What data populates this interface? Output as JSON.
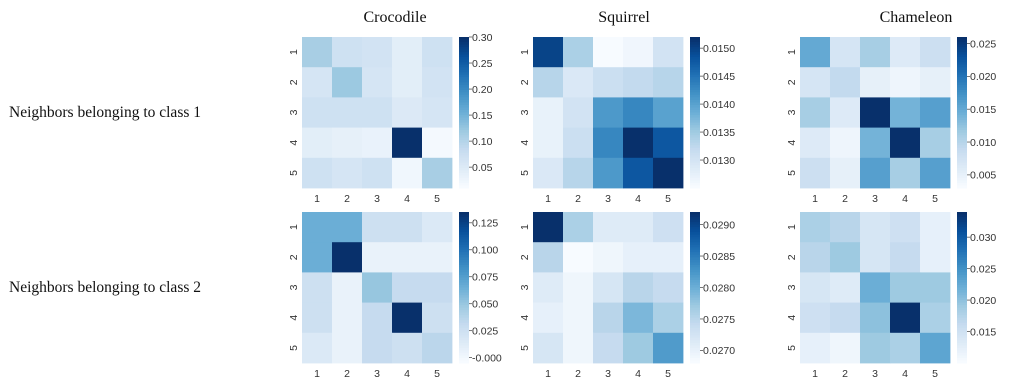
{
  "row_labels": [
    "Neighbors belonging to class 1",
    "Neighbors belonging to class 2"
  ],
  "col_titles": [
    "Crocodile",
    "Squirrel",
    "Chameleon"
  ],
  "chart_data": [
    {
      "type": "heatmap",
      "title": "Crocodile",
      "row_group": "Neighbors belonging to class 1",
      "xticks": [
        "1",
        "2",
        "3",
        "4",
        "5"
      ],
      "yticks": [
        "1",
        "2",
        "3",
        "4",
        "5"
      ],
      "vmin": 0.01,
      "vmax": 0.3,
      "colorbar_ticks": [
        0.3,
        0.25,
        0.2,
        0.15,
        0.1,
        0.05
      ],
      "colorbar_labels": [
        "0.30",
        "0.25",
        "0.20",
        "0.15",
        "0.10",
        "0.05"
      ],
      "values": [
        [
          0.11,
          0.07,
          0.065,
          0.04,
          0.07
        ],
        [
          0.06,
          0.12,
          0.06,
          0.04,
          0.065
        ],
        [
          0.07,
          0.07,
          0.07,
          0.05,
          0.06
        ],
        [
          0.04,
          0.035,
          0.03,
          0.3,
          0.015
        ],
        [
          0.07,
          0.06,
          0.07,
          0.02,
          0.11
        ]
      ]
    },
    {
      "type": "heatmap",
      "title": "Squirrel",
      "row_group": "Neighbors belonging to class 1",
      "xticks": [
        "1",
        "2",
        "3",
        "4",
        "5"
      ],
      "yticks": [
        "1",
        "2",
        "3",
        "4",
        "5"
      ],
      "vmin": 0.0125,
      "vmax": 0.0152,
      "colorbar_ticks": [
        0.015,
        0.0145,
        0.014,
        0.0135,
        0.013
      ],
      "colorbar_labels": [
        "0.0150",
        "0.0145",
        "0.0140",
        "0.0135",
        "0.0130"
      ],
      "values": [
        [
          0.015,
          0.0134,
          0.0125,
          0.0126,
          0.013
        ],
        [
          0.0133,
          0.0129,
          0.0131,
          0.0132,
          0.0133
        ],
        [
          0.0127,
          0.013,
          0.0141,
          0.0143,
          0.014
        ],
        [
          0.0127,
          0.0131,
          0.0143,
          0.0152,
          0.0148
        ],
        [
          0.0129,
          0.0133,
          0.0141,
          0.0148,
          0.0152
        ]
      ]
    },
    {
      "type": "heatmap",
      "title": "Chameleon",
      "row_group": "Neighbors belonging to class 1",
      "xticks": [
        "1",
        "2",
        "3",
        "4",
        "5"
      ],
      "yticks": [
        "1",
        "2",
        "3",
        "4",
        "5"
      ],
      "vmin": 0.003,
      "vmax": 0.026,
      "colorbar_ticks": [
        0.025,
        0.02,
        0.015,
        0.01,
        0.005
      ],
      "colorbar_labels": [
        "0.025",
        "0.020",
        "0.015",
        "0.010",
        "0.005"
      ],
      "values": [
        [
          0.015,
          0.007,
          0.011,
          0.006,
          0.008
        ],
        [
          0.007,
          0.009,
          0.005,
          0.004,
          0.005
        ],
        [
          0.011,
          0.006,
          0.026,
          0.014,
          0.016
        ],
        [
          0.006,
          0.004,
          0.014,
          0.026,
          0.011
        ],
        [
          0.008,
          0.005,
          0.016,
          0.011,
          0.016
        ]
      ]
    },
    {
      "type": "heatmap",
      "title": "Crocodile",
      "row_group": "Neighbors belonging to class 2",
      "xticks": [
        "1",
        "2",
        "3",
        "4",
        "5"
      ],
      "yticks": [
        "1",
        "2",
        "3",
        "4",
        "5"
      ],
      "vmin": -0.005,
      "vmax": 0.135,
      "colorbar_ticks": [
        0.125,
        0.1,
        0.075,
        0.05,
        0.025,
        0.0
      ],
      "colorbar_labels": [
        "0.125",
        "0.100",
        "0.075",
        "0.050",
        "0.025",
        "-0.000"
      ],
      "values": [
        [
          0.065,
          0.065,
          0.025,
          0.025,
          0.015
        ],
        [
          0.065,
          0.135,
          0.005,
          0.005,
          0.005
        ],
        [
          0.025,
          0.005,
          0.05,
          0.03,
          0.03
        ],
        [
          0.025,
          0.005,
          0.03,
          0.135,
          0.025
        ],
        [
          0.015,
          0.005,
          0.03,
          0.025,
          0.035
        ]
      ]
    },
    {
      "type": "heatmap",
      "title": "Squirrel",
      "row_group": "Neighbors belonging to class 2",
      "xticks": [
        "1",
        "2",
        "3",
        "4",
        "5"
      ],
      "yticks": [
        "1",
        "2",
        "3",
        "4",
        "5"
      ],
      "vmin": 0.0268,
      "vmax": 0.0292,
      "colorbar_ticks": [
        0.029,
        0.0285,
        0.028,
        0.0275,
        0.027
      ],
      "colorbar_labels": [
        "0.0290",
        "0.0285",
        "0.0280",
        "0.0275",
        "0.0270"
      ],
      "values": [
        [
          0.0292,
          0.0276,
          0.0271,
          0.0271,
          0.0273
        ],
        [
          0.0275,
          0.0268,
          0.0269,
          0.027,
          0.027
        ],
        [
          0.0271,
          0.0269,
          0.0272,
          0.0275,
          0.0274
        ],
        [
          0.027,
          0.0269,
          0.0275,
          0.0279,
          0.0276
        ],
        [
          0.0272,
          0.0269,
          0.0274,
          0.0277,
          0.0282
        ]
      ]
    },
    {
      "type": "heatmap",
      "title": "Chameleon",
      "row_group": "Neighbors belonging to class 2",
      "xticks": [
        "1",
        "2",
        "3",
        "4",
        "5"
      ],
      "yticks": [
        "1",
        "2",
        "3",
        "4",
        "5"
      ],
      "vmin": 0.01,
      "vmax": 0.034,
      "colorbar_ticks": [
        0.03,
        0.025,
        0.02,
        0.015
      ],
      "colorbar_labels": [
        "0.030",
        "0.025",
        "0.020",
        "0.015"
      ],
      "values": [
        [
          0.018,
          0.017,
          0.014,
          0.015,
          0.012
        ],
        [
          0.017,
          0.019,
          0.014,
          0.016,
          0.012
        ],
        [
          0.014,
          0.013,
          0.022,
          0.019,
          0.019
        ],
        [
          0.015,
          0.016,
          0.02,
          0.034,
          0.018
        ],
        [
          0.012,
          0.011,
          0.019,
          0.018,
          0.023
        ]
      ]
    }
  ]
}
